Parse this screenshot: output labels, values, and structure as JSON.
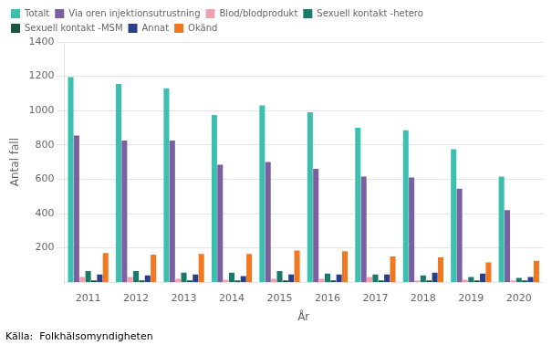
{
  "chart_data": {
    "type": "bar",
    "xlabel": "År",
    "ylabel": "Antal fall",
    "annotations": [
      "Källa:  Folkhälsomyndigheten"
    ],
    "categories": [
      "2011",
      "2012",
      "2013",
      "2014",
      "2015",
      "2016",
      "2017",
      "2018",
      "2019",
      "2020"
    ],
    "series": [
      {
        "name": "Totalt",
        "color": "#3dbfb0",
        "values": [
          1195,
          1155,
          1130,
          975,
          1030,
          990,
          900,
          885,
          775,
          615
        ]
      },
      {
        "name": "Via oren injektionsutrustning",
        "color": "#7c5fa0",
        "values": [
          855,
          825,
          825,
          685,
          700,
          660,
          615,
          610,
          545,
          420
        ]
      },
      {
        "name": "Blod/blodprodukt",
        "color": "#f0a0b0",
        "values": [
          30,
          30,
          20,
          15,
          20,
          20,
          30,
          10,
          15,
          10
        ]
      },
      {
        "name": "Sexuell kontakt -hetero",
        "color": "#1a7a6a",
        "values": [
          65,
          65,
          55,
          55,
          65,
          50,
          45,
          40,
          30,
          25
        ]
      },
      {
        "name": "Sexuell kontakt -MSM",
        "color": "#1a5540",
        "values": [
          10,
          10,
          10,
          10,
          10,
          10,
          10,
          10,
          10,
          10
        ]
      },
      {
        "name": "Annat",
        "color": "#2a3f8a",
        "values": [
          45,
          40,
          45,
          35,
          45,
          45,
          45,
          55,
          50,
          30
        ]
      },
      {
        "name": "Okänd",
        "color": "#f07820",
        "values": [
          170,
          160,
          165,
          165,
          185,
          180,
          150,
          145,
          115,
          125
        ]
      }
    ],
    "ylim": [
      0,
      1400
    ],
    "yticks": [
      200,
      400,
      600,
      800,
      1000,
      1200,
      1400
    ],
    "grid": true,
    "legend": "upper left"
  }
}
